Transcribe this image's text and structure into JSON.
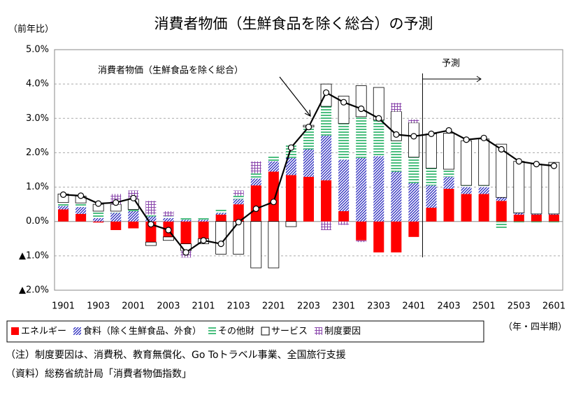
{
  "chart_data": {
    "type": "bar",
    "title": "消費者物価（生鮮食品を除く総合）の予測",
    "y_axis_label": "（前年比）",
    "x_axis_label": "（年・四半期）",
    "categories": [
      "1901",
      null,
      "1903",
      null,
      "2001",
      null,
      "2003",
      null,
      "2101",
      null,
      "2103",
      null,
      "2201",
      null,
      "2203",
      null,
      "2301",
      null,
      "2303",
      null,
      "2401",
      null,
      "2403",
      null,
      "2501",
      null,
      "2503",
      null,
      "2601"
    ],
    "series": [
      {
        "name": "エネルギー",
        "color": "#ff0000",
        "pattern": "solid",
        "values": [
          0.35,
          0.22,
          -0.03,
          -0.25,
          -0.2,
          -0.6,
          -0.45,
          -0.65,
          -0.5,
          0.2,
          0.5,
          1.05,
          1.45,
          1.35,
          1.3,
          1.2,
          0.3,
          -0.55,
          -0.9,
          -0.9,
          -0.45,
          0.4,
          0.95,
          0.8,
          0.8,
          0.6,
          0.2,
          0.2,
          0.2
        ]
      },
      {
        "name": "食料（除く生鮮食品、外食）",
        "color": "#2222bb",
        "pattern": "diagonal",
        "values": [
          0.1,
          0.2,
          0.1,
          0.25,
          0.3,
          0.15,
          0.1,
          0.05,
          0.05,
          0.05,
          0.15,
          0.2,
          0.3,
          0.5,
          0.8,
          1.3,
          1.5,
          1.85,
          1.9,
          1.45,
          1.12,
          0.65,
          0.35,
          0.2,
          0.2,
          0.1,
          0.05,
          0.02,
          0.02
        ]
      },
      {
        "name": "その他財",
        "color": "#11aa55",
        "pattern": "horizontal",
        "values": [
          0.1,
          0.12,
          0.2,
          0.05,
          0.05,
          0.05,
          0.05,
          0.05,
          0.05,
          0.1,
          0.1,
          0.15,
          0.15,
          0.4,
          0.65,
          0.85,
          1.05,
          1.2,
          1.05,
          0.9,
          0.75,
          0.5,
          0.22,
          0.05,
          0.05,
          -0.2,
          -0.05,
          -0.05,
          -0.05
        ]
      },
      {
        "name": "サービス",
        "color": "#ffffff",
        "pattern": "outline",
        "values": [
          0.25,
          0.2,
          0.2,
          0.2,
          0.3,
          -0.1,
          -0.1,
          -0.2,
          -0.15,
          -0.95,
          -0.95,
          -1.35,
          -1.35,
          -0.15,
          0.05,
          0.65,
          0.8,
          0.9,
          0.95,
          0.85,
          1.0,
          1.0,
          1.05,
          1.3,
          1.35,
          1.55,
          1.5,
          1.45,
          1.5
        ]
      },
      {
        "name": "制度要因",
        "color": "#8844aa",
        "pattern": "grid",
        "values": [
          0,
          0,
          0,
          0.3,
          0.25,
          0.4,
          0.15,
          -0.2,
          0,
          0,
          0.15,
          0.35,
          0,
          0,
          0,
          -0.25,
          -0.1,
          -0.05,
          0,
          0.25,
          0.1,
          0,
          0,
          0,
          0,
          0,
          0,
          0,
          0
        ]
      }
    ],
    "line": {
      "name": "消費者物価（生鮮食品を除く総合）",
      "color": "#000000",
      "values": [
        0.78,
        0.75,
        0.52,
        0.55,
        0.68,
        -0.08,
        -0.25,
        -0.9,
        -0.55,
        -0.65,
        -0.02,
        0.37,
        0.57,
        2.15,
        2.75,
        3.75,
        3.47,
        3.28,
        3.0,
        2.53,
        2.48,
        2.55,
        2.65,
        2.38,
        2.43,
        2.1,
        1.75,
        1.67,
        1.62
      ]
    },
    "forecast_label": "予測",
    "ylim": [
      -2,
      5
    ],
    "yticks": [
      {
        "value": -2,
        "label": "▲2.0%"
      },
      {
        "value": -1,
        "label": "▲1.0%"
      },
      {
        "value": 0,
        "label": "0.0%"
      },
      {
        "value": 1,
        "label": "1.0%"
      },
      {
        "value": 2,
        "label": "2.0%"
      },
      {
        "value": 3,
        "label": "3.0%"
      },
      {
        "value": 4,
        "label": "4.0%"
      },
      {
        "value": 5,
        "label": "5.0%"
      }
    ],
    "grid": true,
    "notes": [
      "（注）制度要因は、消費税、教育無償化、Go Toトラベル事業、全国旅行支援",
      "（資料）総務省統計局「消費者物価指数」"
    ]
  }
}
